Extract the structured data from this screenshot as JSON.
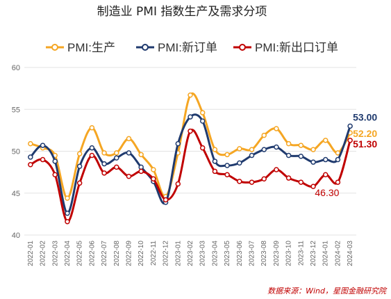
{
  "chart_data": {
    "type": "line",
    "title": "制造业 PMI 指数生产及需求分项",
    "source": "数据来源：Wind，星图金融研究院",
    "ylim": [
      40,
      60
    ],
    "yticks": [
      "40",
      "45",
      "50",
      "55",
      "60"
    ],
    "grid": true,
    "legend": "top",
    "categories": [
      "2022-01",
      "2022-02",
      "2022-03",
      "2022-04",
      "2022-05",
      "2022-06",
      "2022-07",
      "2022-08",
      "2022-09",
      "2022-10",
      "2022-11",
      "2022-12",
      "2023-01",
      "2023-02",
      "2023-03",
      "2023-04",
      "2023-05",
      "2023-06",
      "2023-07",
      "2023-08",
      "2023-09",
      "2023-10",
      "2023-11",
      "2023-12",
      "2024-01",
      "2024-02",
      "2024-03"
    ],
    "x_tick_labels": [
      "2022-01",
      "2022-02",
      "2022-03",
      "2022-04",
      "2022-05",
      "2022-06",
      "2022-07",
      "2022-08",
      "2022-09",
      "2022-10",
      "2022-11",
      "2022-12",
      "2023-01",
      "2023-02",
      "2023-03",
      "2023-04",
      "2023-05",
      "2023-06",
      "2023-07",
      "2023-08",
      "2023-09",
      "2023-10",
      "2023-11",
      "2023-12",
      "2024-01",
      "2024-02",
      "2024-03"
    ],
    "series": [
      {
        "name": "PMI:生产",
        "color": "#f5a623",
        "values": [
          50.9,
          50.4,
          49.5,
          44.4,
          49.7,
          52.8,
          49.8,
          49.8,
          51.5,
          49.6,
          47.8,
          44.6,
          49.8,
          56.7,
          54.6,
          50.2,
          49.6,
          50.3,
          50.2,
          51.9,
          52.7,
          50.9,
          50.7,
          50.2,
          51.3,
          49.8,
          52.2
        ]
      },
      {
        "name": "PMI:新订单",
        "color": "#1f3a6e",
        "values": [
          49.3,
          50.7,
          48.8,
          42.6,
          48.2,
          50.4,
          48.5,
          49.2,
          49.8,
          48.1,
          46.4,
          43.9,
          50.9,
          54.1,
          53.6,
          48.8,
          48.3,
          48.6,
          49.5,
          50.2,
          50.5,
          49.5,
          49.4,
          48.7,
          49.0,
          49.0,
          53.0
        ]
      },
      {
        "name": "PMI:新出口订单",
        "color": "#c00000",
        "values": [
          48.4,
          49.0,
          47.2,
          41.6,
          46.2,
          49.5,
          47.4,
          48.1,
          47.0,
          47.6,
          46.7,
          44.2,
          46.1,
          52.4,
          50.4,
          47.6,
          47.2,
          46.4,
          46.3,
          46.7,
          47.8,
          46.8,
          46.3,
          45.8,
          47.2,
          46.3,
          51.3
        ]
      }
    ],
    "annotations": [
      {
        "text": "53.00",
        "series": 1,
        "index": 26,
        "color": "#1f3a6e"
      },
      {
        "text": "52.20",
        "series": 0,
        "index": 26,
        "color": "#f5a623"
      },
      {
        "text": "51.30",
        "series": 2,
        "index": 26,
        "color": "#c00000"
      },
      {
        "text": "46.30",
        "series": 2,
        "index": 25,
        "color": "#c00000"
      }
    ]
  }
}
